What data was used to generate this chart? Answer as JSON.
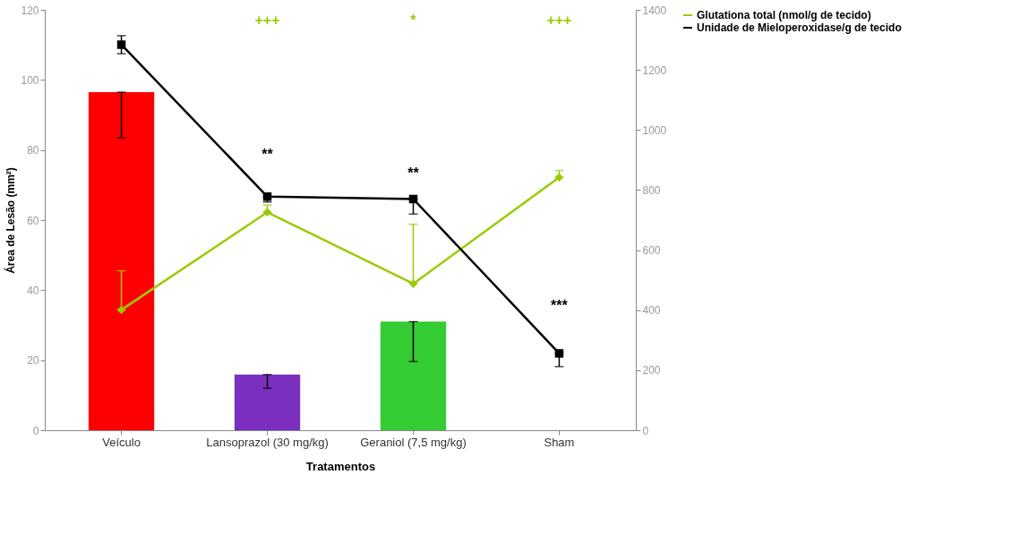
{
  "chart_data": {
    "type": "bar",
    "xlabel": "Tratamentos",
    "ylabel": "Área de Lesão (mm²)",
    "categories": [
      "Veículo",
      "Lansoprazol (30 mg/kg)",
      "Geraniol (7,5 mg/kg)",
      "Sham"
    ],
    "series": [
      {
        "colors": [
          "#ff0000",
          "#7b2fbf",
          "#33cc33",
          "#33cc33"
        ],
        "values": [
          96.5,
          15.9,
          31,
          null
        ],
        "errors": [
          [
            83.5,
            96.5
          ],
          [
            12,
            15.9
          ],
          [
            19.6,
            31
          ],
          null
        ]
      },
      {
        "name": "Glutationa total (nmol/g de tecido)",
        "type": "line",
        "axis": "y2",
        "color": "#99cc00",
        "marker": "diamond",
        "values": [
          401,
          726,
          488,
          842
        ],
        "errors": [
          [
            401,
            531
          ],
          [
            726,
            750
          ],
          [
            488,
            686
          ],
          [
            842,
            865
          ]
        ]
      },
      {
        "name": "Unidade de Mieloperoxidase/g de tecido",
        "type": "line",
        "axis": "y2",
        "color": "#000000",
        "marker": "square",
        "values": [
          1284,
          778,
          770,
          256
        ],
        "errors": [
          30,
          [
            760,
            778
          ],
          [
            720,
            770
          ],
          [
            212,
            256
          ]
        ]
      }
    ],
    "ylim": [
      0,
      120
    ],
    "yticks": [
      0,
      20,
      40,
      60,
      80,
      100,
      120
    ],
    "y2lim": [
      0,
      1400
    ],
    "y2ticks": [
      0,
      200,
      400,
      600,
      800,
      1000,
      1200,
      1400
    ],
    "annotations": [
      "+++",
      "*",
      "+++",
      "**",
      "**",
      "***"
    ],
    "grid": false,
    "legend": "right"
  }
}
